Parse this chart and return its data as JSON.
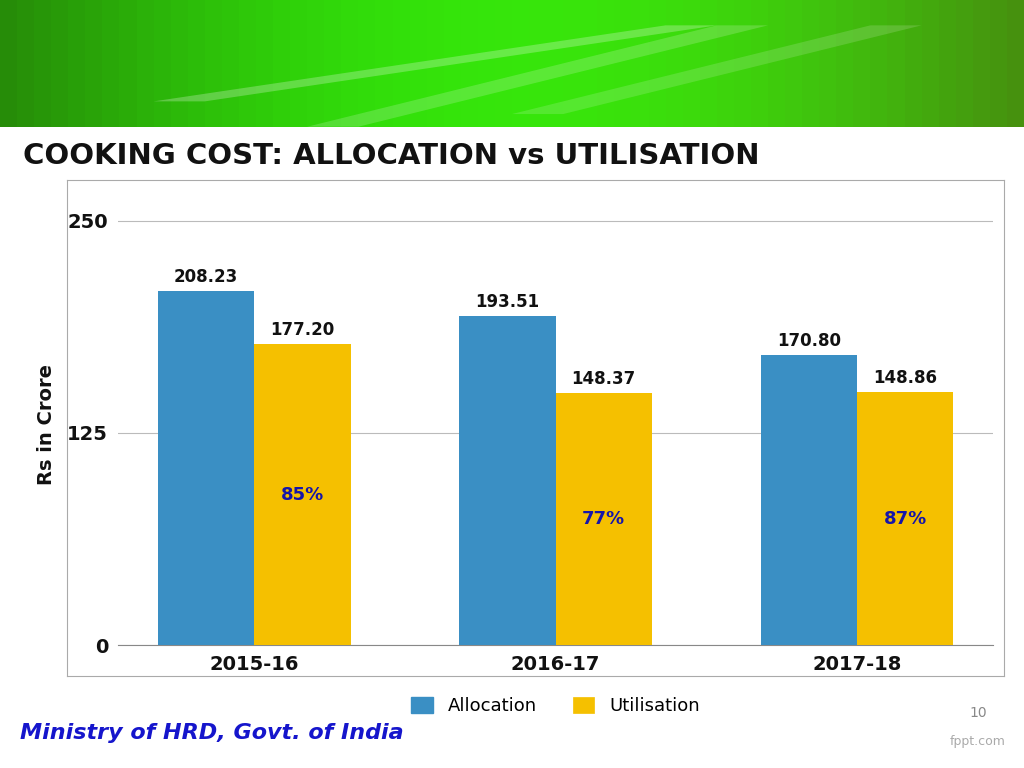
{
  "title": "COOKING COST: ALLOCATION vs UTILISATION",
  "categories": [
    "2015-16",
    "2016-17",
    "2017-18"
  ],
  "allocation": [
    208.23,
    193.51,
    170.8
  ],
  "utilisation": [
    177.2,
    148.37,
    148.86
  ],
  "utilisation_pct": [
    "85%",
    "77%",
    "87%"
  ],
  "bar_color_alloc": "#3A8FC4",
  "bar_color_util": "#F5C000",
  "ylabel": "Rs in Crore",
  "yticks": [
    0,
    125,
    250
  ],
  "ylim": [
    0,
    260
  ],
  "legend_alloc": "Allocation",
  "legend_util": "Utilisation",
  "footer_text": "Ministry of HRD, Govt. of India",
  "footer_color": "#1515CC",
  "page_number": "10",
  "bg_color": "#FFFFFF",
  "chart_bg": "#FFFFFF",
  "title_color": "#111111",
  "bar_width": 0.32,
  "grid_color": "#BBBBBB",
  "annotation_color": "#111111",
  "pct_color": "#1515AA",
  "xlabel_color": "#111111",
  "ylabel_color": "#111111",
  "header_green_dark": "#5a9e1a",
  "header_green_light": "#a8d840",
  "header_green_mid": "#78be20"
}
